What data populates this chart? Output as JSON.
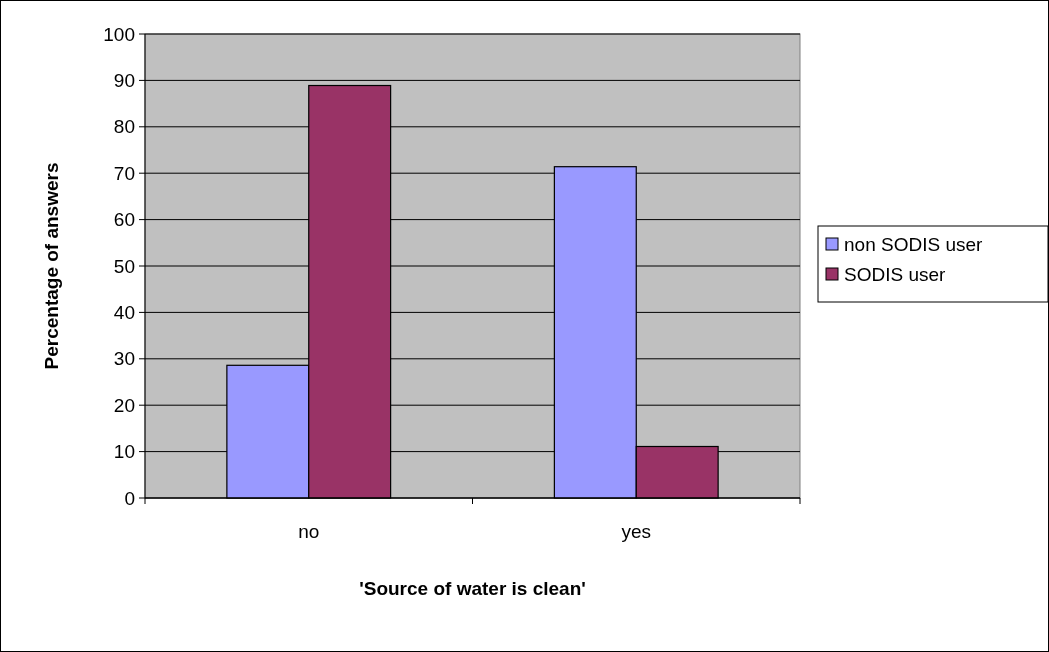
{
  "chart_data": {
    "type": "bar",
    "xlabel": "'Source of water is clean'",
    "ylabel": "Percentage of answers",
    "categories": [
      "no",
      "yes"
    ],
    "series": [
      {
        "name": "non SODIS user",
        "color": "#9999ff",
        "values": [
          28.6,
          71.4
        ]
      },
      {
        "name": "SODIS user",
        "color": "#993366",
        "values": [
          88.9,
          11.1
        ]
      }
    ],
    "ylim": [
      0,
      100
    ],
    "yticks": [
      0,
      10,
      20,
      30,
      40,
      50,
      60,
      70,
      80,
      90,
      100
    ],
    "grid": "y",
    "legend": "right"
  }
}
